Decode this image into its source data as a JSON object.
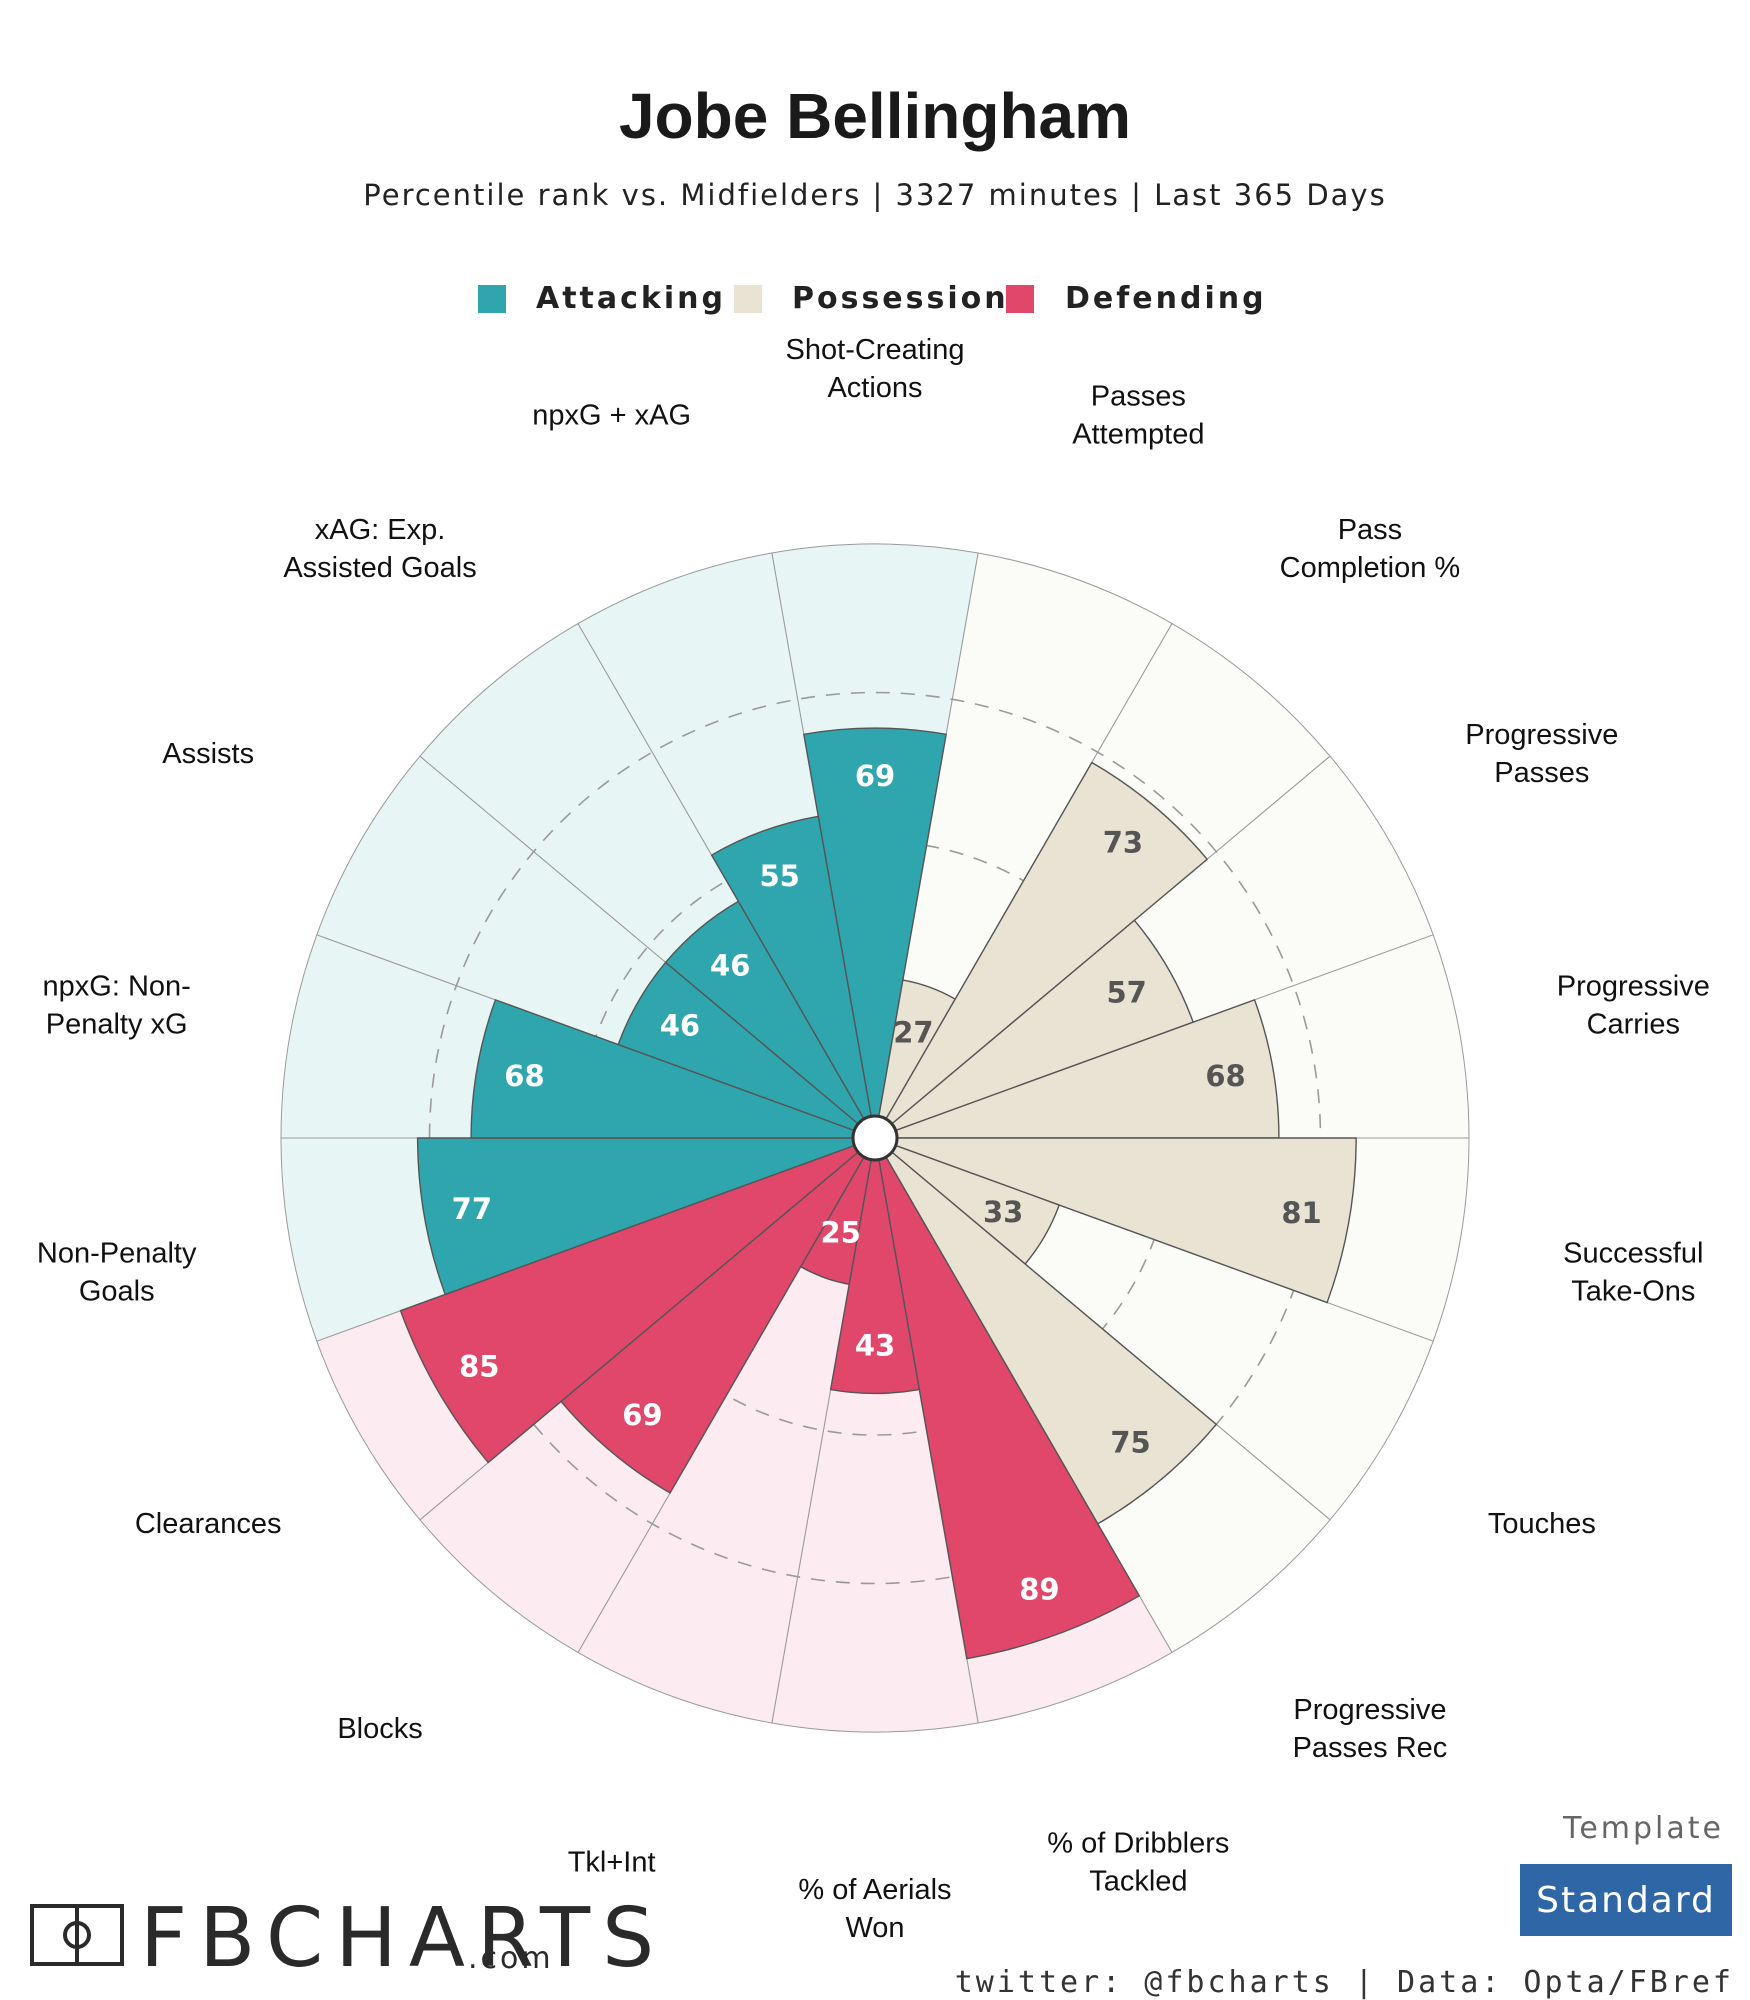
{
  "title": "Jobe Bellingham",
  "subtitle": "Percentile rank vs. Midfielders | 3327 minutes | Last 365 Days",
  "legend": [
    {
      "label": "Attacking",
      "color": "#2fa6ad"
    },
    {
      "label": "Possession",
      "color": "#e9e3d3"
    },
    {
      "label": "Defending",
      "color": "#e0476a"
    }
  ],
  "template": {
    "label": "Template",
    "value": "Standard"
  },
  "credit": "twitter: @fbcharts | Data: Opta/FBref",
  "brand": {
    "name": "FBCHARTS",
    "suffix": ".com"
  },
  "chart_data": {
    "type": "polar-bar",
    "title": "Jobe Bellingham",
    "rlim": [
      0,
      100
    ],
    "rings": [
      25,
      50,
      75
    ],
    "categories": [
      {
        "label": "Shot-Creating Actions",
        "lines": [
          "Shot-Creating",
          "Actions"
        ],
        "value": 69,
        "group": "Attacking"
      },
      {
        "label": "Passes Attempted",
        "lines": [
          "Passes",
          "Attempted"
        ],
        "value": 27,
        "group": "Possession"
      },
      {
        "label": "Pass Completion %",
        "lines": [
          "Pass",
          "Completion %"
        ],
        "value": 73,
        "group": "Possession"
      },
      {
        "label": "Progressive Passes",
        "lines": [
          "Progressive",
          "Passes"
        ],
        "value": 57,
        "group": "Possession"
      },
      {
        "label": "Progressive Carries",
        "lines": [
          "Progressive",
          "Carries"
        ],
        "value": 68,
        "group": "Possession"
      },
      {
        "label": "Successful Take-Ons",
        "lines": [
          "Successful",
          "Take-Ons"
        ],
        "value": 81,
        "group": "Possession"
      },
      {
        "label": "Touches",
        "lines": [
          "Touches"
        ],
        "value": 33,
        "group": "Possession"
      },
      {
        "label": "Progressive Passes Rec",
        "lines": [
          "Progressive",
          "Passes Rec"
        ],
        "value": 75,
        "group": "Possession"
      },
      {
        "label": "% of Dribblers Tackled",
        "lines": [
          "% of Dribblers",
          "Tackled"
        ],
        "value": 89,
        "group": "Defending"
      },
      {
        "label": "% of Aerials Won",
        "lines": [
          "% of Aerials",
          "Won"
        ],
        "value": 43,
        "group": "Defending"
      },
      {
        "label": "Tkl+Int",
        "lines": [
          "Tkl+Int"
        ],
        "value": 25,
        "group": "Defending"
      },
      {
        "label": "Blocks",
        "lines": [
          "Blocks"
        ],
        "value": 69,
        "group": "Defending"
      },
      {
        "label": "Clearances",
        "lines": [
          "Clearances"
        ],
        "value": 85,
        "group": "Defending"
      },
      {
        "label": "Non-Penalty Goals",
        "lines": [
          "Non-Penalty",
          "Goals"
        ],
        "value": 77,
        "group": "Attacking"
      },
      {
        "label": "npxG: Non-Penalty xG",
        "lines": [
          "npxG: Non-",
          "Penalty xG"
        ],
        "value": 68,
        "group": "Attacking"
      },
      {
        "label": "Assists",
        "lines": [
          "Assists"
        ],
        "value": 46,
        "group": "Attacking"
      },
      {
        "label": "xAG: Exp. Assisted Goals",
        "lines": [
          "xAG: Exp.",
          "Assisted Goals"
        ],
        "value": 46,
        "group": "Attacking"
      },
      {
        "label": "npxG + xAG",
        "lines": [
          "npxG + xAG"
        ],
        "value": 55,
        "group": "Attacking"
      }
    ],
    "group_styles": {
      "Attacking": {
        "fill": "#2fa6ad",
        "background": "#e8f5f5",
        "text": "#ffffff"
      },
      "Possession": {
        "fill": "#e9e3d3",
        "background": "#fbfbf8",
        "text": "#555555"
      },
      "Defending": {
        "fill": "#e0476a",
        "background": "#fcebf0",
        "text": "#ffffff"
      }
    }
  }
}
